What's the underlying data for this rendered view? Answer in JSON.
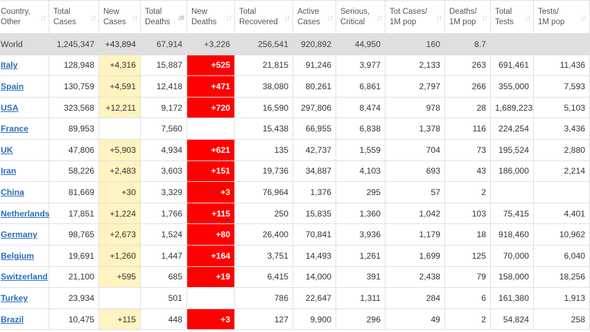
{
  "headers": [
    {
      "label": "Country,\nOther",
      "id": "country"
    },
    {
      "label": "Total\nCases",
      "id": "total-cases"
    },
    {
      "label": "New\nCases",
      "id": "new-cases"
    },
    {
      "label": "Total\nDeaths",
      "id": "total-deaths",
      "sorted": true
    },
    {
      "label": "New\nDeaths",
      "id": "new-deaths"
    },
    {
      "label": "Total\nRecovered",
      "id": "total-recovered"
    },
    {
      "label": "Active\nCases",
      "id": "active-cases"
    },
    {
      "label": "Serious,\nCritical",
      "id": "serious-critical"
    },
    {
      "label": "Tot Cases/\n1M pop",
      "id": "tot-cases-per-1m"
    },
    {
      "label": "Deaths/\n1M pop",
      "id": "deaths-per-1m"
    },
    {
      "label": "Total\nTests",
      "id": "total-tests"
    },
    {
      "label": "Tests/\n1M pop",
      "id": "tests-per-1m"
    }
  ],
  "colors": {
    "new_cases_highlight": "#fff3c0",
    "new_deaths_highlight": "#ff0000",
    "world_row_bg": "#dfdfdf",
    "country_link": "#2a6ebb"
  },
  "rows": [
    {
      "country": "World",
      "is_world": true,
      "total_cases": "1,245,347",
      "new_cases": "+43,894",
      "total_deaths": "67,914",
      "new_deaths": "+3,226",
      "total_recovered": "256,541",
      "active_cases": "920,892",
      "serious_critical": "44,950",
      "tot_cases_1m": "160",
      "deaths_1m": "8.7",
      "total_tests": "",
      "tests_1m": ""
    },
    {
      "country": "Italy",
      "total_cases": "128,948",
      "new_cases": "+4,316",
      "total_deaths": "15,887",
      "new_deaths": "+525",
      "total_recovered": "21,815",
      "active_cases": "91,246",
      "serious_critical": "3,977",
      "tot_cases_1m": "2,133",
      "deaths_1m": "263",
      "total_tests": "691,461",
      "tests_1m": "11,436"
    },
    {
      "country": "Spain",
      "total_cases": "130,759",
      "new_cases": "+4,591",
      "total_deaths": "12,418",
      "new_deaths": "+471",
      "total_recovered": "38,080",
      "active_cases": "80,261",
      "serious_critical": "6,861",
      "tot_cases_1m": "2,797",
      "deaths_1m": "266",
      "total_tests": "355,000",
      "tests_1m": "7,593"
    },
    {
      "country": "USA",
      "total_cases": "323,568",
      "new_cases": "+12,211",
      "total_deaths": "9,172",
      "new_deaths": "+720",
      "total_recovered": "16,590",
      "active_cases": "297,806",
      "serious_critical": "8,474",
      "tot_cases_1m": "978",
      "deaths_1m": "28",
      "total_tests": "1,689,223",
      "tests_1m": "5,103"
    },
    {
      "country": "France",
      "total_cases": "89,953",
      "new_cases": "",
      "total_deaths": "7,560",
      "new_deaths": "",
      "total_recovered": "15,438",
      "active_cases": "66,955",
      "serious_critical": "6,838",
      "tot_cases_1m": "1,378",
      "deaths_1m": "116",
      "total_tests": "224,254",
      "tests_1m": "3,436"
    },
    {
      "country": "UK",
      "total_cases": "47,806",
      "new_cases": "+5,903",
      "total_deaths": "4,934",
      "new_deaths": "+621",
      "total_recovered": "135",
      "active_cases": "42,737",
      "serious_critical": "1,559",
      "tot_cases_1m": "704",
      "deaths_1m": "73",
      "total_tests": "195,524",
      "tests_1m": "2,880"
    },
    {
      "country": "Iran",
      "total_cases": "58,226",
      "new_cases": "+2,483",
      "total_deaths": "3,603",
      "new_deaths": "+151",
      "total_recovered": "19,736",
      "active_cases": "34,887",
      "serious_critical": "4,103",
      "tot_cases_1m": "693",
      "deaths_1m": "43",
      "total_tests": "186,000",
      "tests_1m": "2,214"
    },
    {
      "country": "China",
      "total_cases": "81,669",
      "new_cases": "+30",
      "total_deaths": "3,329",
      "new_deaths": "+3",
      "total_recovered": "76,964",
      "active_cases": "1,376",
      "serious_critical": "295",
      "tot_cases_1m": "57",
      "deaths_1m": "2",
      "total_tests": "",
      "tests_1m": ""
    },
    {
      "country": "Netherlands",
      "total_cases": "17,851",
      "new_cases": "+1,224",
      "total_deaths": "1,766",
      "new_deaths": "+115",
      "total_recovered": "250",
      "active_cases": "15,835",
      "serious_critical": "1,360",
      "tot_cases_1m": "1,042",
      "deaths_1m": "103",
      "total_tests": "75,415",
      "tests_1m": "4,401"
    },
    {
      "country": "Germany",
      "total_cases": "98,765",
      "new_cases": "+2,673",
      "total_deaths": "1,524",
      "new_deaths": "+80",
      "total_recovered": "26,400",
      "active_cases": "70,841",
      "serious_critical": "3,936",
      "tot_cases_1m": "1,179",
      "deaths_1m": "18",
      "total_tests": "918,460",
      "tests_1m": "10,962"
    },
    {
      "country": "Belgium",
      "total_cases": "19,691",
      "new_cases": "+1,260",
      "total_deaths": "1,447",
      "new_deaths": "+164",
      "total_recovered": "3,751",
      "active_cases": "14,493",
      "serious_critical": "1,261",
      "tot_cases_1m": "1,699",
      "deaths_1m": "125",
      "total_tests": "70,000",
      "tests_1m": "6,040"
    },
    {
      "country": "Switzerland",
      "total_cases": "21,100",
      "new_cases": "+595",
      "total_deaths": "685",
      "new_deaths": "+19",
      "total_recovered": "6,415",
      "active_cases": "14,000",
      "serious_critical": "391",
      "tot_cases_1m": "2,438",
      "deaths_1m": "79",
      "total_tests": "158,000",
      "tests_1m": "18,256"
    },
    {
      "country": "Turkey",
      "total_cases": "23,934",
      "new_cases": "",
      "total_deaths": "501",
      "new_deaths": "",
      "total_recovered": "786",
      "active_cases": "22,647",
      "serious_critical": "1,311",
      "tot_cases_1m": "284",
      "deaths_1m": "6",
      "total_tests": "161,380",
      "tests_1m": "1,913"
    },
    {
      "country": "Brazil",
      "total_cases": "10,475",
      "new_cases": "+115",
      "total_deaths": "448",
      "new_deaths": "+3",
      "total_recovered": "127",
      "active_cases": "9,900",
      "serious_critical": "296",
      "tot_cases_1m": "49",
      "deaths_1m": "2",
      "total_tests": "54,824",
      "tests_1m": "258"
    }
  ]
}
